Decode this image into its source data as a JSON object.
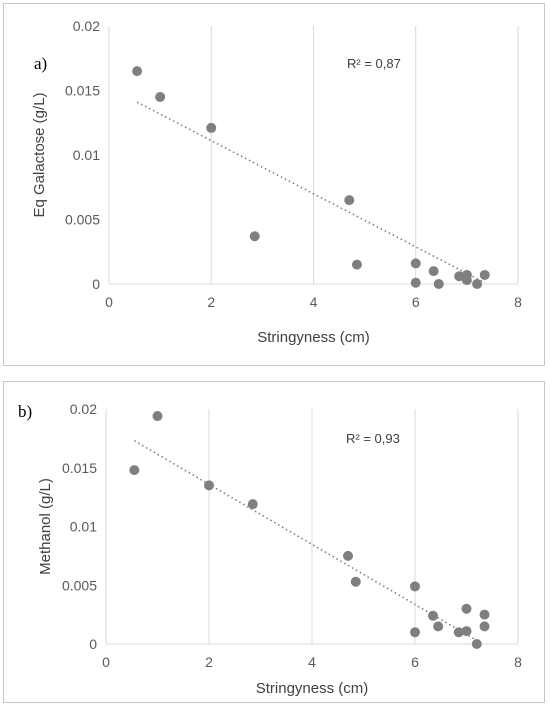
{
  "chart_data": [
    {
      "type": "scatter",
      "panel_label": "a)",
      "xlabel": "Stringyness (cm)",
      "ylabel": "Eq Galactose (g/L)",
      "annotation": "R² = 0,87",
      "xlim": [
        0,
        8
      ],
      "ylim": [
        0,
        0.02
      ],
      "x_ticks": [
        "0",
        "2",
        "4",
        "6",
        "8"
      ],
      "y_ticks": [
        "0",
        "0.005",
        "0.01",
        "0.015",
        "0.02"
      ],
      "grid": "vertical",
      "colors": {
        "point": "#7f7f7f",
        "trend": "#7f7f7f",
        "grid": "#d9d9d9"
      },
      "points": [
        {
          "x": 0.55,
          "y": 0.0165
        },
        {
          "x": 1.0,
          "y": 0.0145
        },
        {
          "x": 2.0,
          "y": 0.0121
        },
        {
          "x": 2.85,
          "y": 0.0037
        },
        {
          "x": 4.7,
          "y": 0.0065
        },
        {
          "x": 4.85,
          "y": 0.0015
        },
        {
          "x": 6.0,
          "y": 0.0016
        },
        {
          "x": 6.0,
          "y": 0.0001
        },
        {
          "x": 6.35,
          "y": 0.001
        },
        {
          "x": 6.45,
          "y": 0.0
        },
        {
          "x": 6.85,
          "y": 0.0006
        },
        {
          "x": 7.0,
          "y": 0.0007
        },
        {
          "x": 7.0,
          "y": 0.0003
        },
        {
          "x": 7.2,
          "y": 0.0
        },
        {
          "x": 7.35,
          "y": 0.0007
        }
      ],
      "trendline": {
        "x": [
          0.55,
          7.35
        ],
        "y": [
          0.0141,
          0.0001
        ]
      }
    },
    {
      "type": "scatter",
      "panel_label": "b)",
      "xlabel": "Stringyness (cm)",
      "ylabel": "Methanol (g/L)",
      "annotation": "R² = 0,93",
      "xlim": [
        0,
        8
      ],
      "ylim": [
        0,
        0.02
      ],
      "x_ticks": [
        "0",
        "2",
        "4",
        "6",
        "8"
      ],
      "y_ticks": [
        "0",
        "0.005",
        "0.01",
        "0.015",
        "0.02"
      ],
      "grid": "vertical",
      "colors": {
        "point": "#7f7f7f",
        "trend": "#7f7f7f",
        "grid": "#d9d9d9"
      },
      "points": [
        {
          "x": 0.55,
          "y": 0.0148
        },
        {
          "x": 1.0,
          "y": 0.0194
        },
        {
          "x": 2.0,
          "y": 0.0135
        },
        {
          "x": 2.85,
          "y": 0.0119
        },
        {
          "x": 4.7,
          "y": 0.0075
        },
        {
          "x": 4.85,
          "y": 0.0053
        },
        {
          "x": 6.0,
          "y": 0.0049
        },
        {
          "x": 6.0,
          "y": 0.001
        },
        {
          "x": 6.35,
          "y": 0.0024
        },
        {
          "x": 6.45,
          "y": 0.0015
        },
        {
          "x": 6.85,
          "y": 0.001
        },
        {
          "x": 7.0,
          "y": 0.003
        },
        {
          "x": 7.0,
          "y": 0.0011
        },
        {
          "x": 7.2,
          "y": 0.0
        },
        {
          "x": 7.35,
          "y": 0.0025
        },
        {
          "x": 7.35,
          "y": 0.0015
        }
      ],
      "trendline": {
        "x": [
          0.55,
          7.2
        ],
        "y": [
          0.0173,
          0.0003
        ]
      }
    }
  ]
}
